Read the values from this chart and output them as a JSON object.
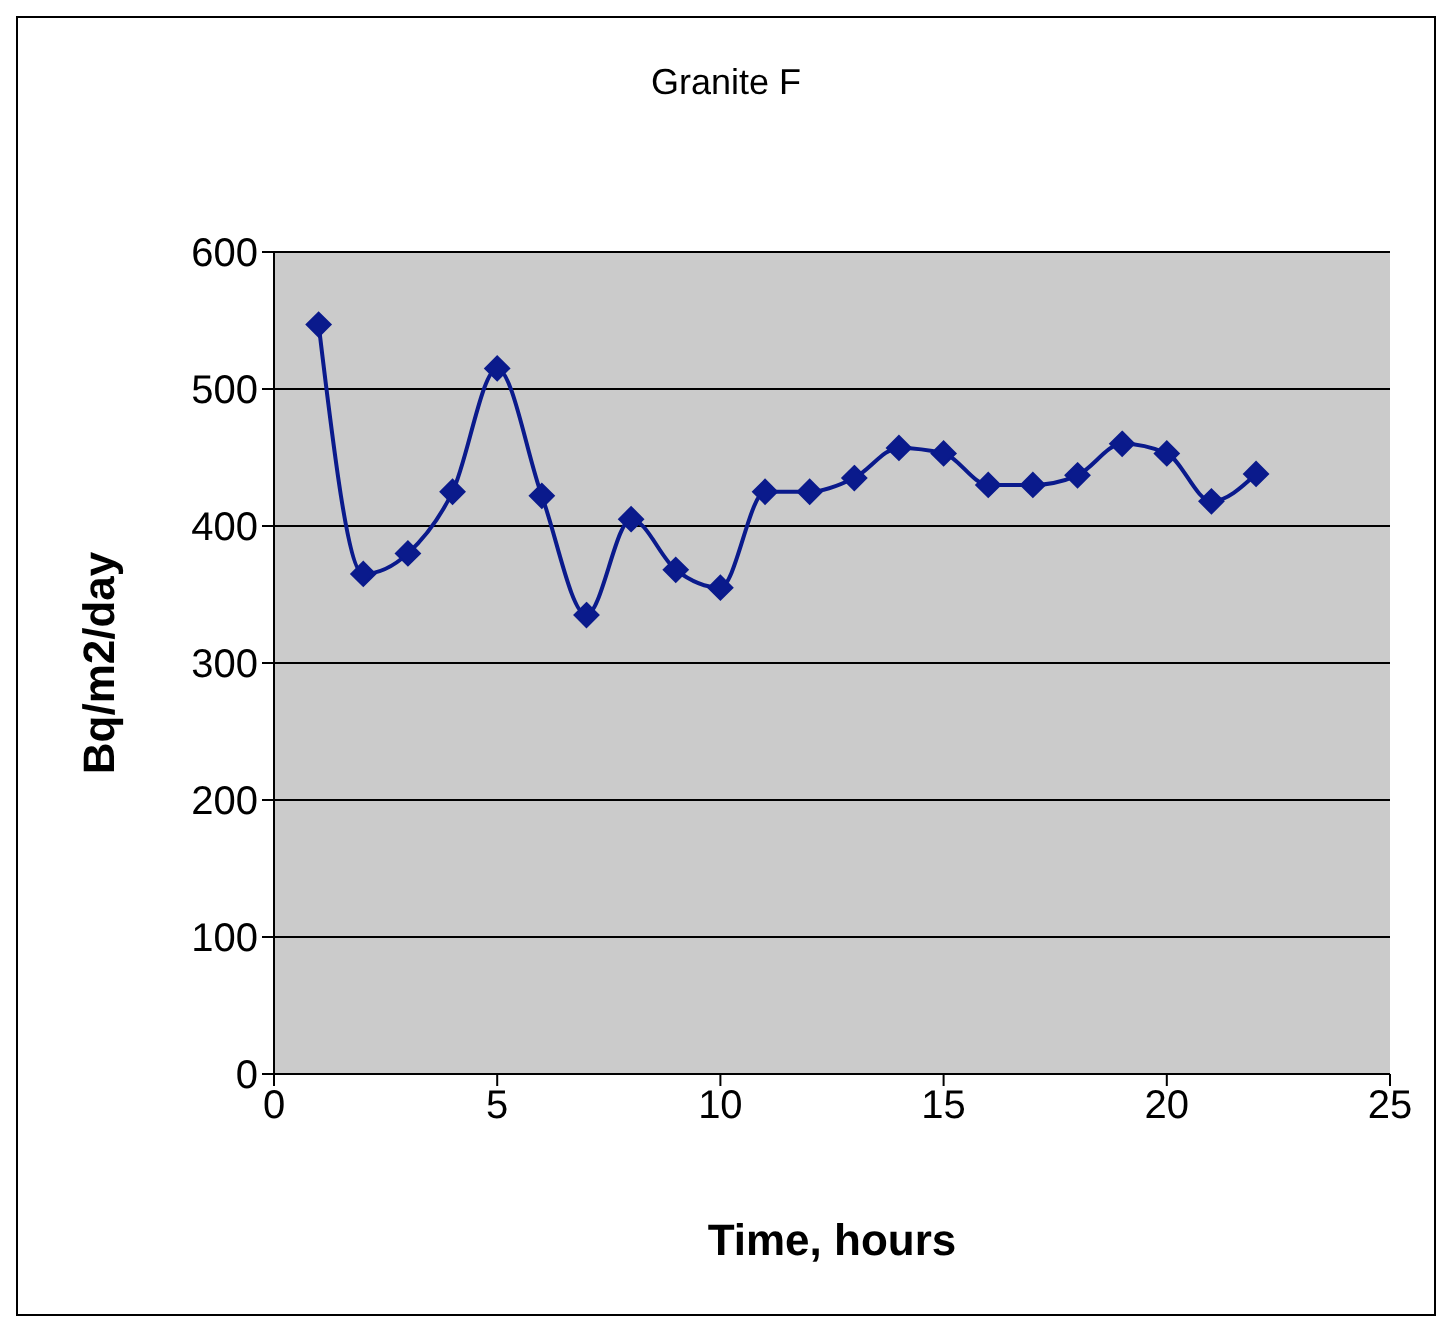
{
  "chart_data": {
    "type": "line",
    "title": "Granite F",
    "xlabel": "Time, hours",
    "ylabel": "Bq/m2/day",
    "x": [
      1,
      2,
      3,
      4,
      5,
      6,
      7,
      8,
      9,
      10,
      11,
      12,
      13,
      14,
      15,
      16,
      17,
      18,
      19,
      20,
      21,
      22
    ],
    "series": [
      {
        "color": "#0a1a8c",
        "values": [
          547,
          365,
          380,
          425,
          515,
          422,
          335,
          405,
          368,
          355,
          425,
          425,
          435,
          457,
          453,
          430,
          430,
          437,
          460,
          453,
          418,
          438
        ]
      }
    ],
    "xlim": [
      0,
      25
    ],
    "xticks": [
      0,
      5,
      10,
      15,
      20,
      25
    ],
    "ylim": [
      0,
      600
    ],
    "yticks": [
      0,
      100,
      200,
      300,
      400,
      500,
      600
    ],
    "grid": "y",
    "marker": "diamond",
    "line_style": "solid"
  }
}
